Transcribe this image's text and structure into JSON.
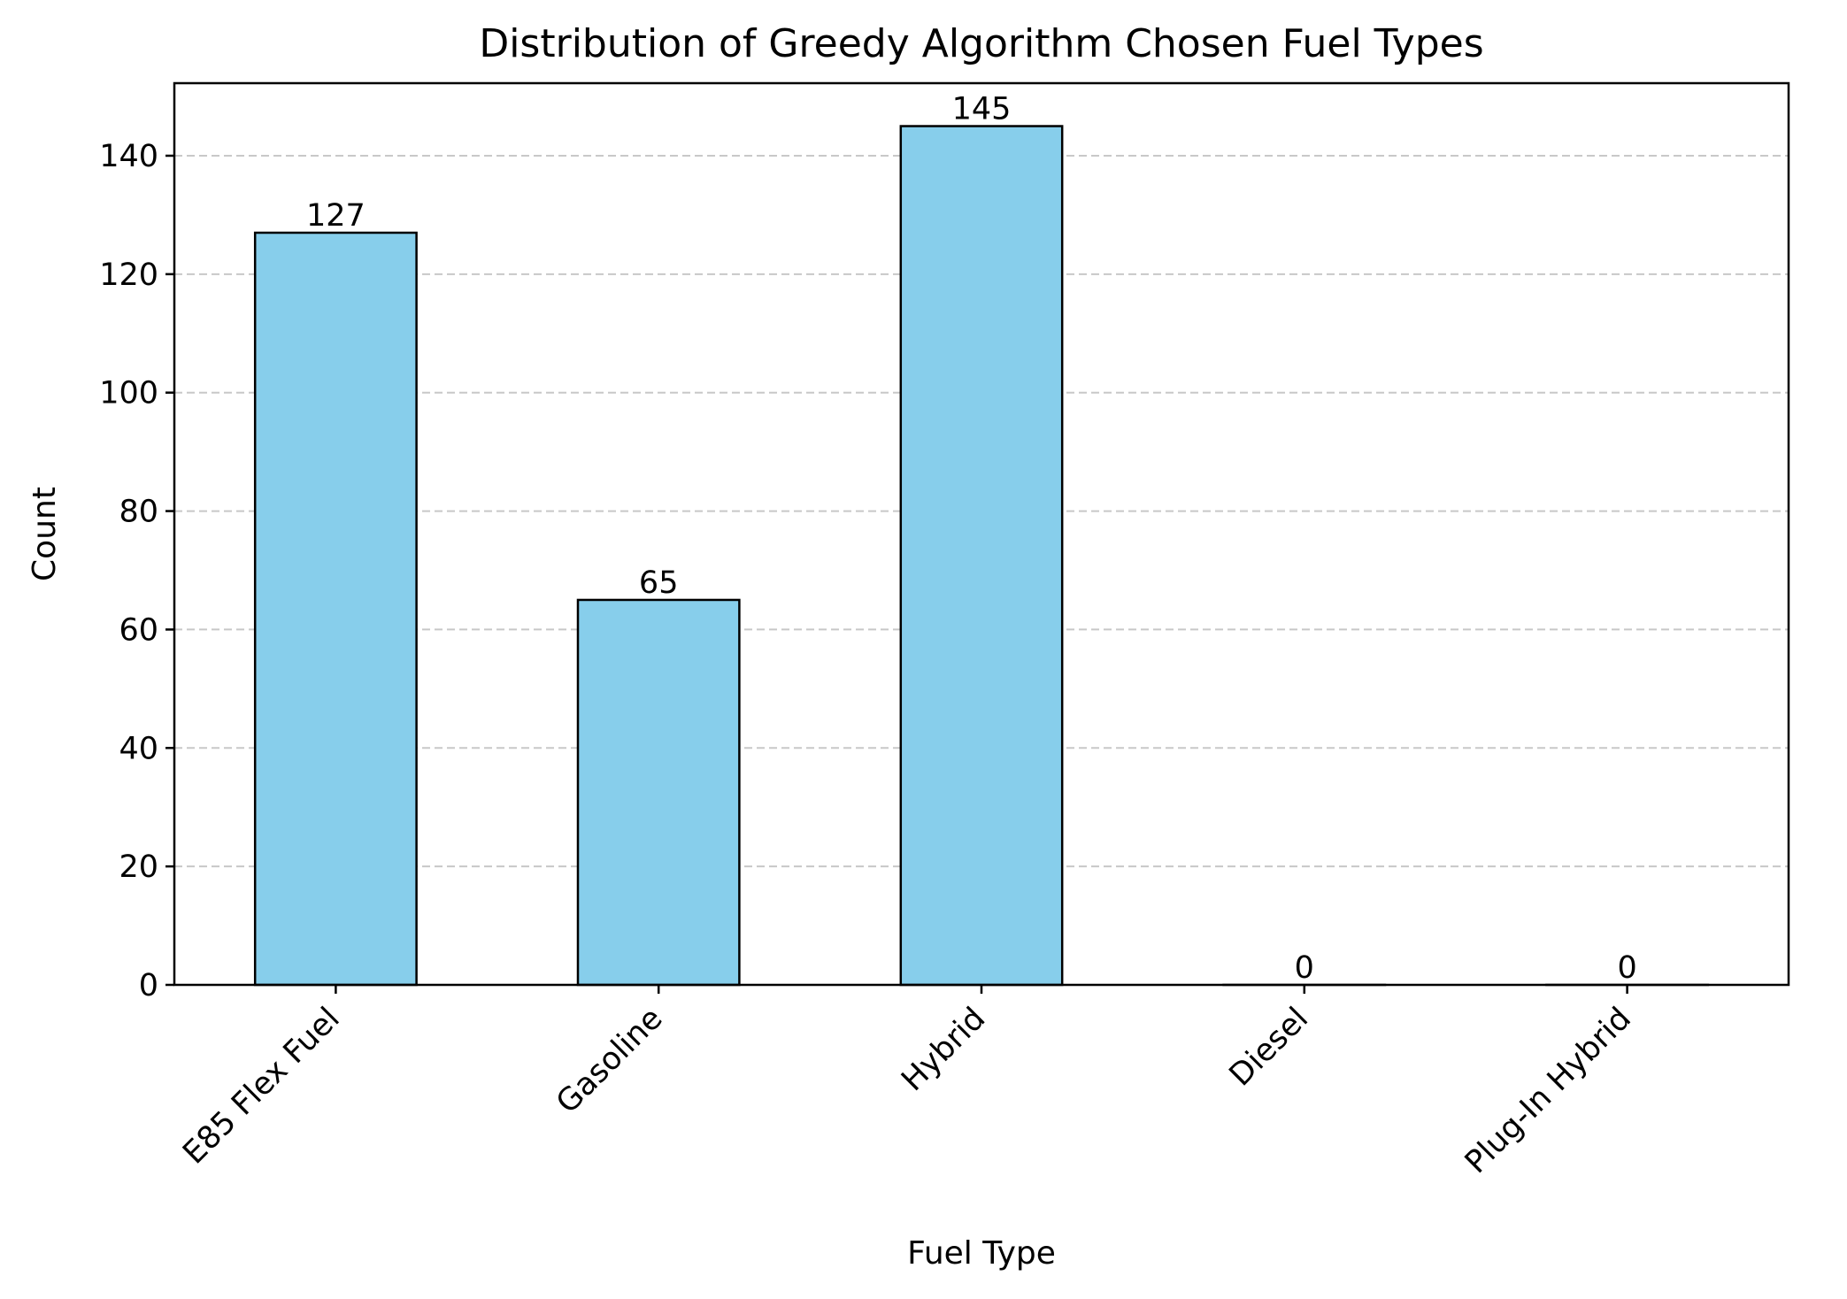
{
  "chart_data": {
    "type": "bar",
    "title": "Distribution of Greedy Algorithm Chosen Fuel Types",
    "xlabel": "Fuel Type",
    "ylabel": "Count",
    "categories": [
      "E85 Flex Fuel",
      "Gasoline",
      "Hybrid",
      "Diesel",
      "Plug-In Hybrid"
    ],
    "values": [
      127,
      65,
      145,
      0,
      0
    ],
    "ylim": [
      0,
      152.25
    ],
    "yticks": [
      0,
      20,
      40,
      60,
      80,
      100,
      120,
      140
    ],
    "grid": "y dashed",
    "bar_color": "#87CEEB",
    "edge_color": "#000000",
    "grid_color": "#c8c8c8",
    "x_tick_rotation": "45deg, right-aligned"
  }
}
